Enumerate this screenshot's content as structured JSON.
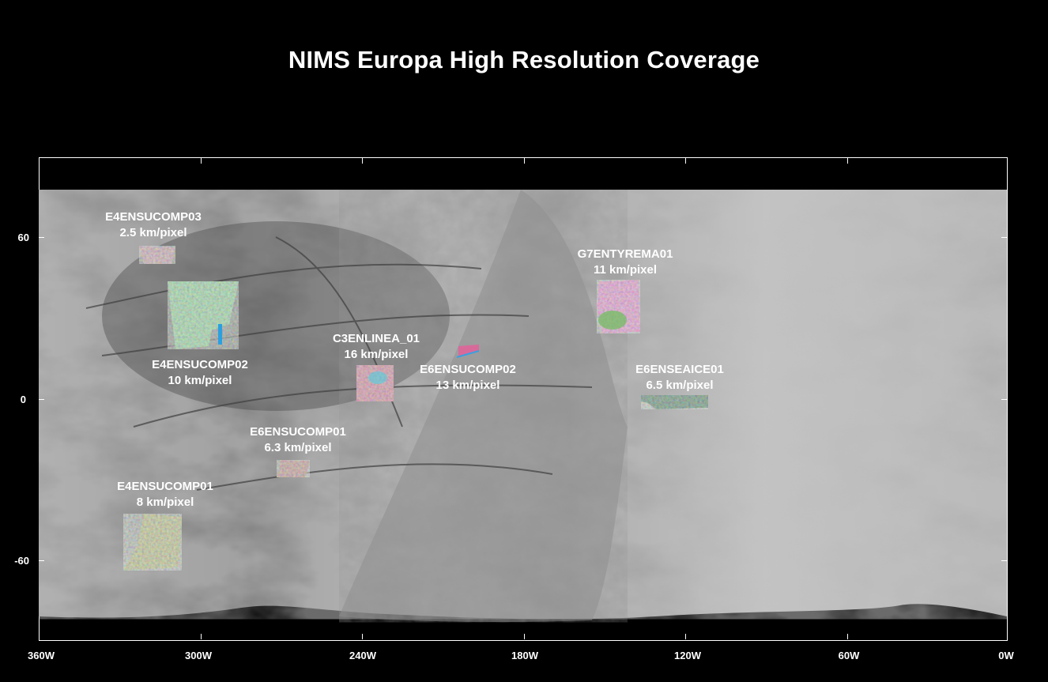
{
  "title": "NIMS Europa High Resolution Coverage",
  "axes": {
    "x_ticks": [
      "360W",
      "300W",
      "240W",
      "180W",
      "120W",
      "60W",
      "0W"
    ],
    "y_ticks": [
      "60",
      "0",
      "-60"
    ]
  },
  "observations": [
    {
      "name": "E4ENSUCOMP03",
      "resolution": "2.5 km/pixel"
    },
    {
      "name": "E4ENSUCOMP02",
      "resolution": "10 km/pixel"
    },
    {
      "name": "C3ENLINEA_01",
      "resolution": "16 km/pixel"
    },
    {
      "name": "E6ENSUCOMP02",
      "resolution": "13 km/pixel"
    },
    {
      "name": "G7ENTYREMA01",
      "resolution": "11 km/pixel"
    },
    {
      "name": "E6ENSEAICE01",
      "resolution": "6.5 km/pixel"
    },
    {
      "name": "E6ENSUCOMP01",
      "resolution": "6.3 km/pixel"
    },
    {
      "name": "E4ENSUCOMP01",
      "resolution": "8 km/pixel"
    }
  ],
  "colors": {
    "background": "#000000",
    "frame": "#ffffff",
    "text": "#ffffff"
  }
}
